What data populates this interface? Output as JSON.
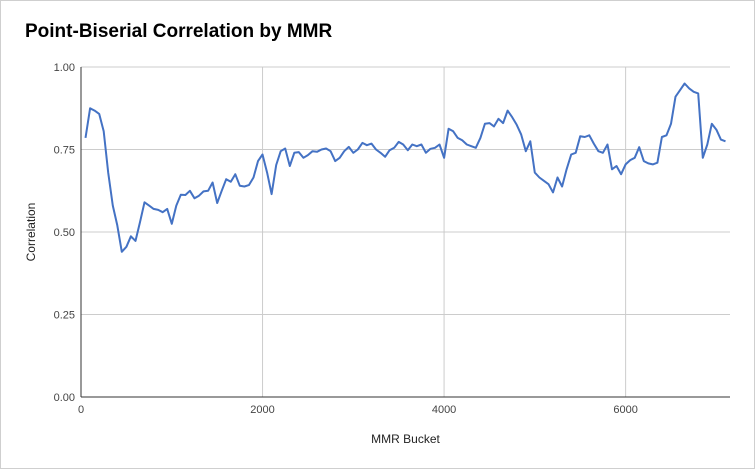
{
  "chart_data": {
    "type": "line",
    "title": "Point-Biserial Correlation by MMR",
    "xlabel": "MMR Bucket",
    "ylabel": "Correlation",
    "xlim": [
      0,
      7150
    ],
    "ylim": [
      0,
      1
    ],
    "x_ticks": [
      0,
      2000,
      4000,
      6000
    ],
    "x_tick_labels": [
      "0",
      "2000",
      "4000",
      "6000"
    ],
    "y_ticks": [
      0,
      0.25,
      0.5,
      0.75,
      1
    ],
    "y_tick_labels": [
      "0.00",
      "0.25",
      "0.50",
      "0.75",
      "1.00"
    ],
    "grid": true,
    "legend": "none",
    "series_color": "#4472c4",
    "series": [
      {
        "x": [
          50,
          100,
          150,
          200,
          250,
          300,
          350,
          400,
          450,
          500,
          550,
          600,
          650,
          700,
          750,
          800,
          850,
          900,
          950,
          1000,
          1050,
          1100,
          1150,
          1200,
          1250,
          1300,
          1350,
          1400,
          1450,
          1500,
          1550,
          1600,
          1650,
          1700,
          1750,
          1800,
          1850,
          1900,
          1950,
          2000,
          2050,
          2100,
          2150,
          2200,
          2250,
          2300,
          2350,
          2400,
          2450,
          2500,
          2550,
          2600,
          2650,
          2700,
          2750,
          2800,
          2850,
          2900,
          2950,
          3000,
          3050,
          3100,
          3150,
          3200,
          3250,
          3300,
          3350,
          3400,
          3450,
          3500,
          3550,
          3600,
          3650,
          3700,
          3750,
          3800,
          3850,
          3900,
          3950,
          4000,
          4050,
          4100,
          4150,
          4200,
          4250,
          4300,
          4350,
          4400,
          4450,
          4500,
          4550,
          4600,
          4650,
          4700,
          4750,
          4800,
          4850,
          4900,
          4950,
          5000,
          5050,
          5100,
          5150,
          5200,
          5250,
          5300,
          5350,
          5400,
          5450,
          5500,
          5550,
          5600,
          5650,
          5700,
          5750,
          5800,
          5850,
          5900,
          5950,
          6000,
          6050,
          6100,
          6150,
          6200,
          6250,
          6300,
          6350,
          6400,
          6450,
          6500,
          6550,
          6600,
          6650,
          6700,
          6750,
          6800,
          6850,
          6900,
          6950,
          7000,
          7050,
          7100
        ],
        "values": [
          0.785,
          0.875,
          0.868,
          0.858,
          0.805,
          0.68,
          0.58,
          0.52,
          0.44,
          0.455,
          0.487,
          0.473,
          0.53,
          0.59,
          0.58,
          0.57,
          0.567,
          0.56,
          0.57,
          0.525,
          0.58,
          0.613,
          0.612,
          0.625,
          0.602,
          0.61,
          0.623,
          0.625,
          0.65,
          0.588,
          0.625,
          0.66,
          0.652,
          0.675,
          0.64,
          0.638,
          0.642,
          0.665,
          0.715,
          0.735,
          0.68,
          0.615,
          0.703,
          0.745,
          0.753,
          0.7,
          0.74,
          0.742,
          0.725,
          0.733,
          0.745,
          0.743,
          0.75,
          0.753,
          0.745,
          0.715,
          0.725,
          0.745,
          0.758,
          0.74,
          0.75,
          0.77,
          0.763,
          0.768,
          0.75,
          0.74,
          0.728,
          0.748,
          0.755,
          0.773,
          0.765,
          0.748,
          0.765,
          0.76,
          0.765,
          0.74,
          0.752,
          0.755,
          0.765,
          0.725,
          0.813,
          0.805,
          0.785,
          0.778,
          0.765,
          0.76,
          0.755,
          0.785,
          0.828,
          0.83,
          0.82,
          0.843,
          0.83,
          0.868,
          0.848,
          0.825,
          0.795,
          0.745,
          0.775,
          0.68,
          0.665,
          0.655,
          0.645,
          0.62,
          0.665,
          0.638,
          0.69,
          0.735,
          0.74,
          0.79,
          0.788,
          0.793,
          0.768,
          0.745,
          0.74,
          0.765,
          0.69,
          0.7,
          0.675,
          0.705,
          0.718,
          0.725,
          0.757,
          0.715,
          0.708,
          0.705,
          0.71,
          0.788,
          0.793,
          0.828,
          0.91,
          0.93,
          0.95,
          0.935,
          0.925,
          0.92,
          0.725,
          0.765,
          0.828,
          0.81,
          0.78,
          0.775
        ]
      }
    ]
  }
}
